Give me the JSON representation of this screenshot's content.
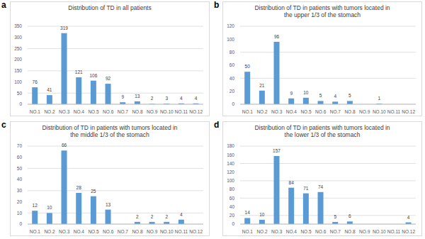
{
  "chart_data": [
    {
      "type": "bar",
      "annotation": "a",
      "title": "Distribution of TD in all patients",
      "categories": [
        "NO.1",
        "NO.2",
        "NO.3",
        "NO.4",
        "NO.5",
        "NO.6",
        "NO.7",
        "NO.8",
        "NO.9",
        "NO.10",
        "NO.11",
        "NO.12"
      ],
      "values": [
        76,
        41,
        319,
        121,
        106,
        92,
        9,
        13,
        2,
        3,
        4,
        4
      ],
      "color": "#5b9bd5",
      "ylim": [
        0,
        350
      ],
      "yticks": [
        0,
        50,
        100,
        150,
        200,
        250,
        300,
        350
      ],
      "grid": true,
      "data_labels": true
    },
    {
      "type": "bar",
      "annotation": "b",
      "title": "Distribution of TD in patients with tumors located in\nthe upper 1/3 of the stomach",
      "categories": [
        "NO.1",
        "NO.2",
        "NO.3",
        "NO.4",
        "NO.5",
        "NO.6",
        "NO.7",
        "NO.8",
        "NO.9",
        "NO.10",
        "NO.11",
        "NO.12"
      ],
      "values": [
        50,
        21,
        96,
        9,
        10,
        5,
        4,
        5,
        0,
        1,
        0,
        0
      ],
      "color": "#5b9bd5",
      "ylim": [
        0,
        120
      ],
      "yticks": [
        0,
        20,
        40,
        60,
        80,
        100,
        120
      ],
      "grid": true,
      "data_labels": true
    },
    {
      "type": "bar",
      "annotation": "c",
      "title": "Distribution of TD in patients with tumors located in\nthe middle 1/3 of the stomach",
      "categories": [
        "NO.1",
        "NO.2",
        "NO.3",
        "NO.4",
        "NO.5",
        "NO.6",
        "NO.7",
        "NO.8",
        "NO.9",
        "NO.10",
        "NO.11",
        "NO.12"
      ],
      "values": [
        12,
        10,
        66,
        28,
        25,
        13,
        0,
        2,
        2,
        2,
        4,
        0
      ],
      "color": "#5b9bd5",
      "ylim": [
        0,
        70
      ],
      "yticks": [
        0,
        10,
        20,
        30,
        40,
        50,
        60,
        70
      ],
      "grid": true,
      "data_labels": true
    },
    {
      "type": "bar",
      "annotation": "d",
      "title": "Distribution of TD in patients with tumors located in\nthe lower 1/3 of the stomach",
      "categories": [
        "NO.1",
        "NO.2",
        "NO.3",
        "NO.4",
        "NO.5",
        "NO.6",
        "NO.7",
        "NO.8",
        "NO.9",
        "NO.10",
        "NO.11",
        "NO.12"
      ],
      "values": [
        14,
        10,
        157,
        84,
        71,
        74,
        5,
        6,
        0,
        0,
        0,
        4
      ],
      "color": "#5b9bd5",
      "ylim": [
        0,
        180
      ],
      "yticks": [
        0,
        20,
        40,
        60,
        80,
        100,
        120,
        140,
        160,
        180
      ],
      "grid": true,
      "data_labels": true
    }
  ]
}
